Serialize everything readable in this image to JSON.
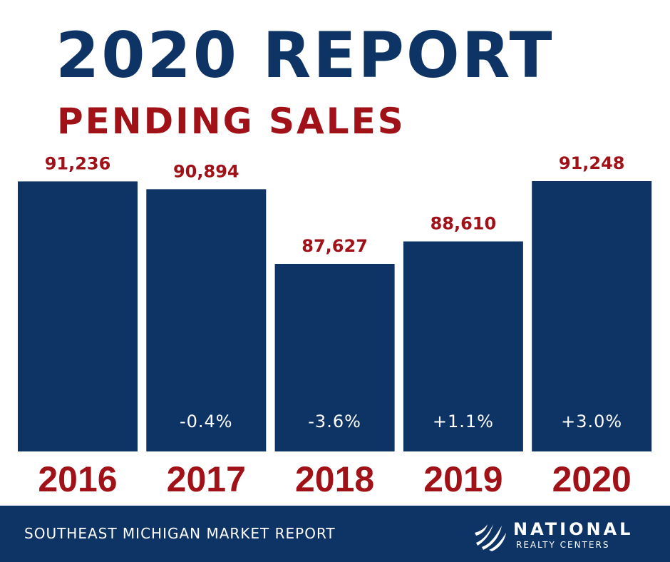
{
  "title": "2020 REPORT",
  "subtitle": "PENDING SALES",
  "chart_data": {
    "type": "bar",
    "title": "PENDING SALES",
    "categories": [
      "2016",
      "2017",
      "2018",
      "2019",
      "2020"
    ],
    "values": [
      91236,
      90894,
      87627,
      88610,
      91248
    ],
    "value_labels": [
      "91,236",
      "90,894",
      "87,627",
      "88,610",
      "91,248"
    ],
    "change_labels": [
      "",
      "-0.4%",
      "-3.6%",
      "+1.1%",
      "+3.0%"
    ],
    "xlabel": "",
    "ylabel": "",
    "grid": false,
    "legend": "none"
  },
  "footer": {
    "text": "SOUTHEAST MICHIGAN MARKET REPORT",
    "logo_name": "NATIONAL",
    "logo_sub": "REALTY CENTERS",
    "logo_icon": "national-realty-swoosh-icon"
  },
  "colors": {
    "navy": "#0e3466",
    "red": "#a11218",
    "white": "#ffffff"
  }
}
